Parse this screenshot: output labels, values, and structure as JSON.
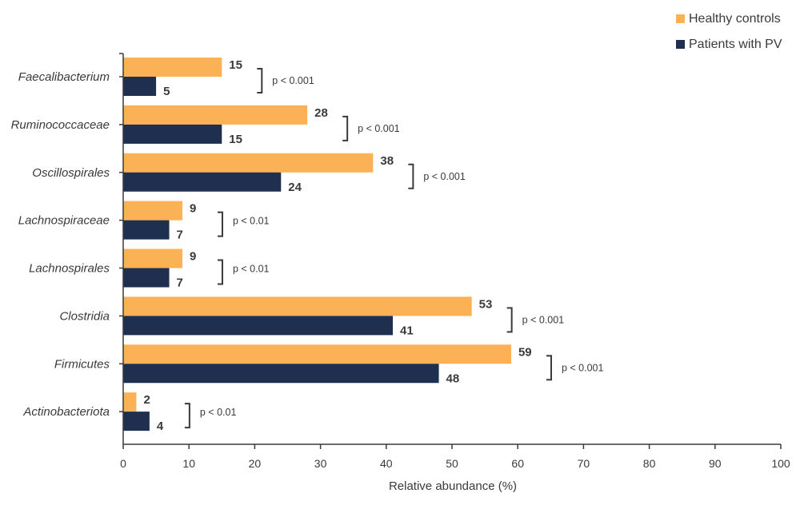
{
  "chart_data": {
    "type": "bar",
    "orientation": "horizontal",
    "title": "",
    "xlabel": "Relative abundance (%)",
    "ylabel": "",
    "xlim": [
      0,
      100
    ],
    "xticks": [
      0,
      10,
      20,
      30,
      40,
      50,
      60,
      70,
      80,
      90,
      100
    ],
    "grid": false,
    "legend_position": "top-right",
    "categories": [
      "Faecalibacterium",
      "Ruminococcaceae",
      "Oscillospirales",
      "Lachnospiraceae",
      "Lachnospirales",
      "Clostridia",
      "Firmicutes",
      "Actinobacteriota"
    ],
    "series": [
      {
        "name": "Healthy controls",
        "color": "#FBB155",
        "values": [
          15,
          28,
          38,
          9,
          9,
          53,
          59,
          2
        ]
      },
      {
        "name": "Patients with PV",
        "color": "#1E2F50",
        "values": [
          5,
          15,
          24,
          7,
          7,
          41,
          48,
          4
        ]
      }
    ],
    "annotations": [
      "p < 0.001",
      "p < 0.001",
      "p < 0.001",
      "p < 0.01",
      "p < 0.01",
      "p < 0.001",
      "p < 0.001",
      "p < 0.01"
    ]
  }
}
